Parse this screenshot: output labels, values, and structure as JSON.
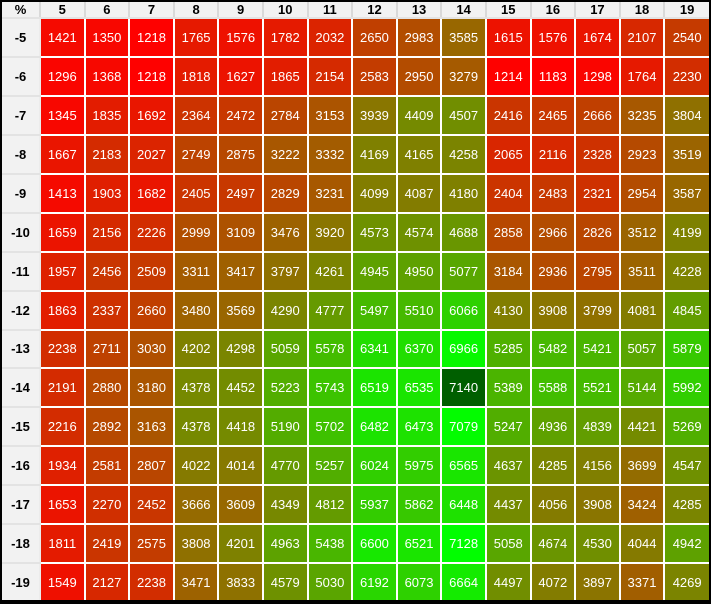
{
  "chart_data": {
    "type": "heatmap",
    "corner_label": "%",
    "x_labels": [
      "5",
      "6",
      "7",
      "8",
      "9",
      "10",
      "11",
      "12",
      "13",
      "14",
      "15",
      "16",
      "17",
      "18",
      "19"
    ],
    "y_labels": [
      "-5",
      "-6",
      "-7",
      "-8",
      "-9",
      "-10",
      "-11",
      "-12",
      "-13",
      "-14",
      "-15",
      "-16",
      "-17",
      "-18",
      "-19"
    ],
    "values": [
      [
        1421,
        1350,
        1218,
        1765,
        1576,
        1782,
        2032,
        2650,
        2983,
        3585,
        1615,
        1576,
        1674,
        2107,
        2540
      ],
      [
        1296,
        1368,
        1218,
        1818,
        1627,
        1865,
        2154,
        2583,
        2950,
        3279,
        1214,
        1183,
        1298,
        1764,
        2230
      ],
      [
        1345,
        1835,
        1692,
        2364,
        2472,
        2784,
        3153,
        3939,
        4409,
        4507,
        2416,
        2465,
        2666,
        3235,
        3804
      ],
      [
        1667,
        2183,
        2027,
        2749,
        2875,
        3222,
        3332,
        4169,
        4165,
        4258,
        2065,
        2116,
        2328,
        2923,
        3519
      ],
      [
        1413,
        1903,
        1682,
        2405,
        2497,
        2829,
        3231,
        4099,
        4087,
        4180,
        2404,
        2483,
        2321,
        2954,
        3587
      ],
      [
        1659,
        2156,
        2226,
        2999,
        3109,
        3476,
        3920,
        4573,
        4574,
        4688,
        2858,
        2966,
        2826,
        3512,
        4199
      ],
      [
        1957,
        2456,
        2509,
        3311,
        3417,
        3797,
        4261,
        4945,
        4950,
        5077,
        3184,
        2936,
        2795,
        3511,
        4228
      ],
      [
        1863,
        2337,
        2660,
        3480,
        3569,
        4290,
        4777,
        5497,
        5510,
        6066,
        4130,
        3908,
        3799,
        4081,
        4845
      ],
      [
        2238,
        2711,
        3030,
        4202,
        4298,
        5059,
        5578,
        6341,
        6370,
        6966,
        5285,
        5482,
        5421,
        5057,
        5879
      ],
      [
        2191,
        2880,
        3180,
        4378,
        4452,
        5223,
        5743,
        6519,
        6535,
        7140,
        5389,
        5588,
        5521,
        5144,
        5992
      ],
      [
        2216,
        2892,
        3163,
        4378,
        4418,
        5190,
        5702,
        6482,
        6473,
        7079,
        5247,
        4936,
        4839,
        4421,
        5269
      ],
      [
        1934,
        2581,
        2807,
        4022,
        4014,
        4770,
        5257,
        6024,
        5975,
        6565,
        4637,
        4285,
        4156,
        3699,
        4547
      ],
      [
        1653,
        2270,
        2452,
        3666,
        3609,
        4349,
        4812,
        5937,
        5862,
        6448,
        4437,
        4056,
        3908,
        3424,
        4285
      ],
      [
        1811,
        2419,
        2575,
        3808,
        4201,
        4963,
        5438,
        6600,
        6521,
        7128,
        5058,
        4674,
        4530,
        4044,
        4942
      ],
      [
        1549,
        2127,
        2238,
        3471,
        3833,
        4579,
        5030,
        6192,
        6073,
        6664,
        4497,
        4072,
        3897,
        3371,
        4269
      ]
    ],
    "value_range": [
      1183,
      7140
    ],
    "highlighted_max_value": 7140,
    "legend_position": "none",
    "grid": true,
    "colors": {
      "scale_low": "#ff0000",
      "scale_high": "#00ff00",
      "max_cell_bg": "#005f00",
      "cell_text": "#ffffff",
      "header_bg": "#f2f2f2",
      "header_text": "#000000",
      "grid_line": "#ffffff",
      "frame": "#000000"
    }
  }
}
